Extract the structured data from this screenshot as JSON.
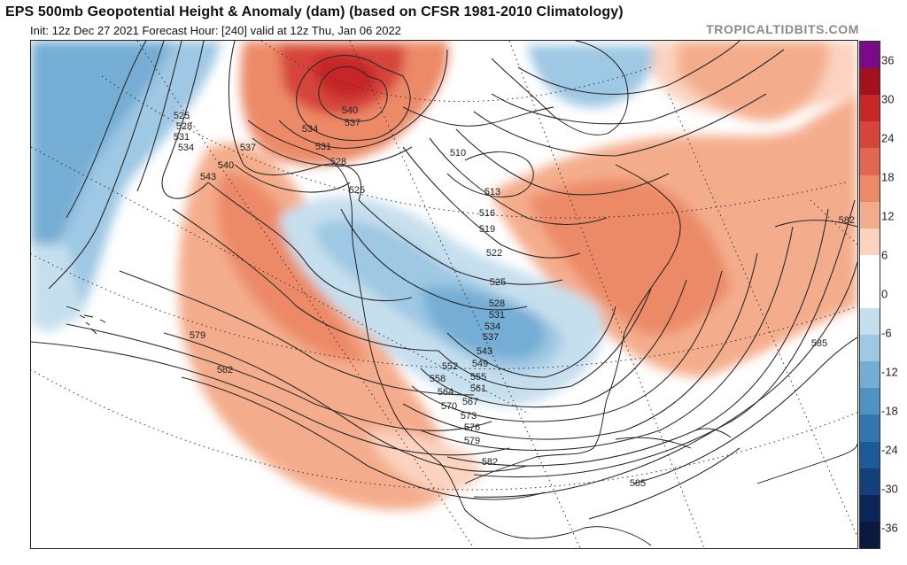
{
  "header": {
    "title": "EPS 500mb Geopotential Height & Anomaly (dam) (based on CFSR 1981-2010 Climatology)",
    "subtitle": "Init: 12z Dec 27 2021   Forecast Hour: [240]   valid at 12z Thu, Jan 06 2022",
    "brand": "TROPICALTIDBITS.COM"
  },
  "colorbar": {
    "ticks": [
      "36",
      "30",
      "24",
      "18",
      "12",
      "6",
      "0",
      "-6",
      "-12",
      "-18",
      "-24",
      "-30",
      "-36"
    ],
    "colors": [
      "#7b0a8a",
      "#a3121c",
      "#c62828",
      "#d6453a",
      "#e2674f",
      "#ec8a68",
      "#f4ad8c",
      "#fbd3bf",
      "#ffffff",
      "#ffffff",
      "#c6dfee",
      "#9ec8e3",
      "#74add4",
      "#4f92c4",
      "#3276b1",
      "#1d5a99",
      "#133f7d",
      "#0b275a",
      "#0a1a3f"
    ]
  },
  "map": {
    "contour_labels": [
      "525",
      "528",
      "531",
      "534",
      "537",
      "540",
      "543",
      "534",
      "531",
      "528",
      "525",
      "540",
      "537",
      "510",
      "513",
      "516",
      "519",
      "522",
      "525",
      "528",
      "531",
      "534",
      "537",
      "543",
      "549",
      "552",
      "555",
      "558",
      "561",
      "564",
      "567",
      "570",
      "573",
      "576",
      "579",
      "579",
      "582",
      "582",
      "582",
      "585",
      "585"
    ]
  }
}
